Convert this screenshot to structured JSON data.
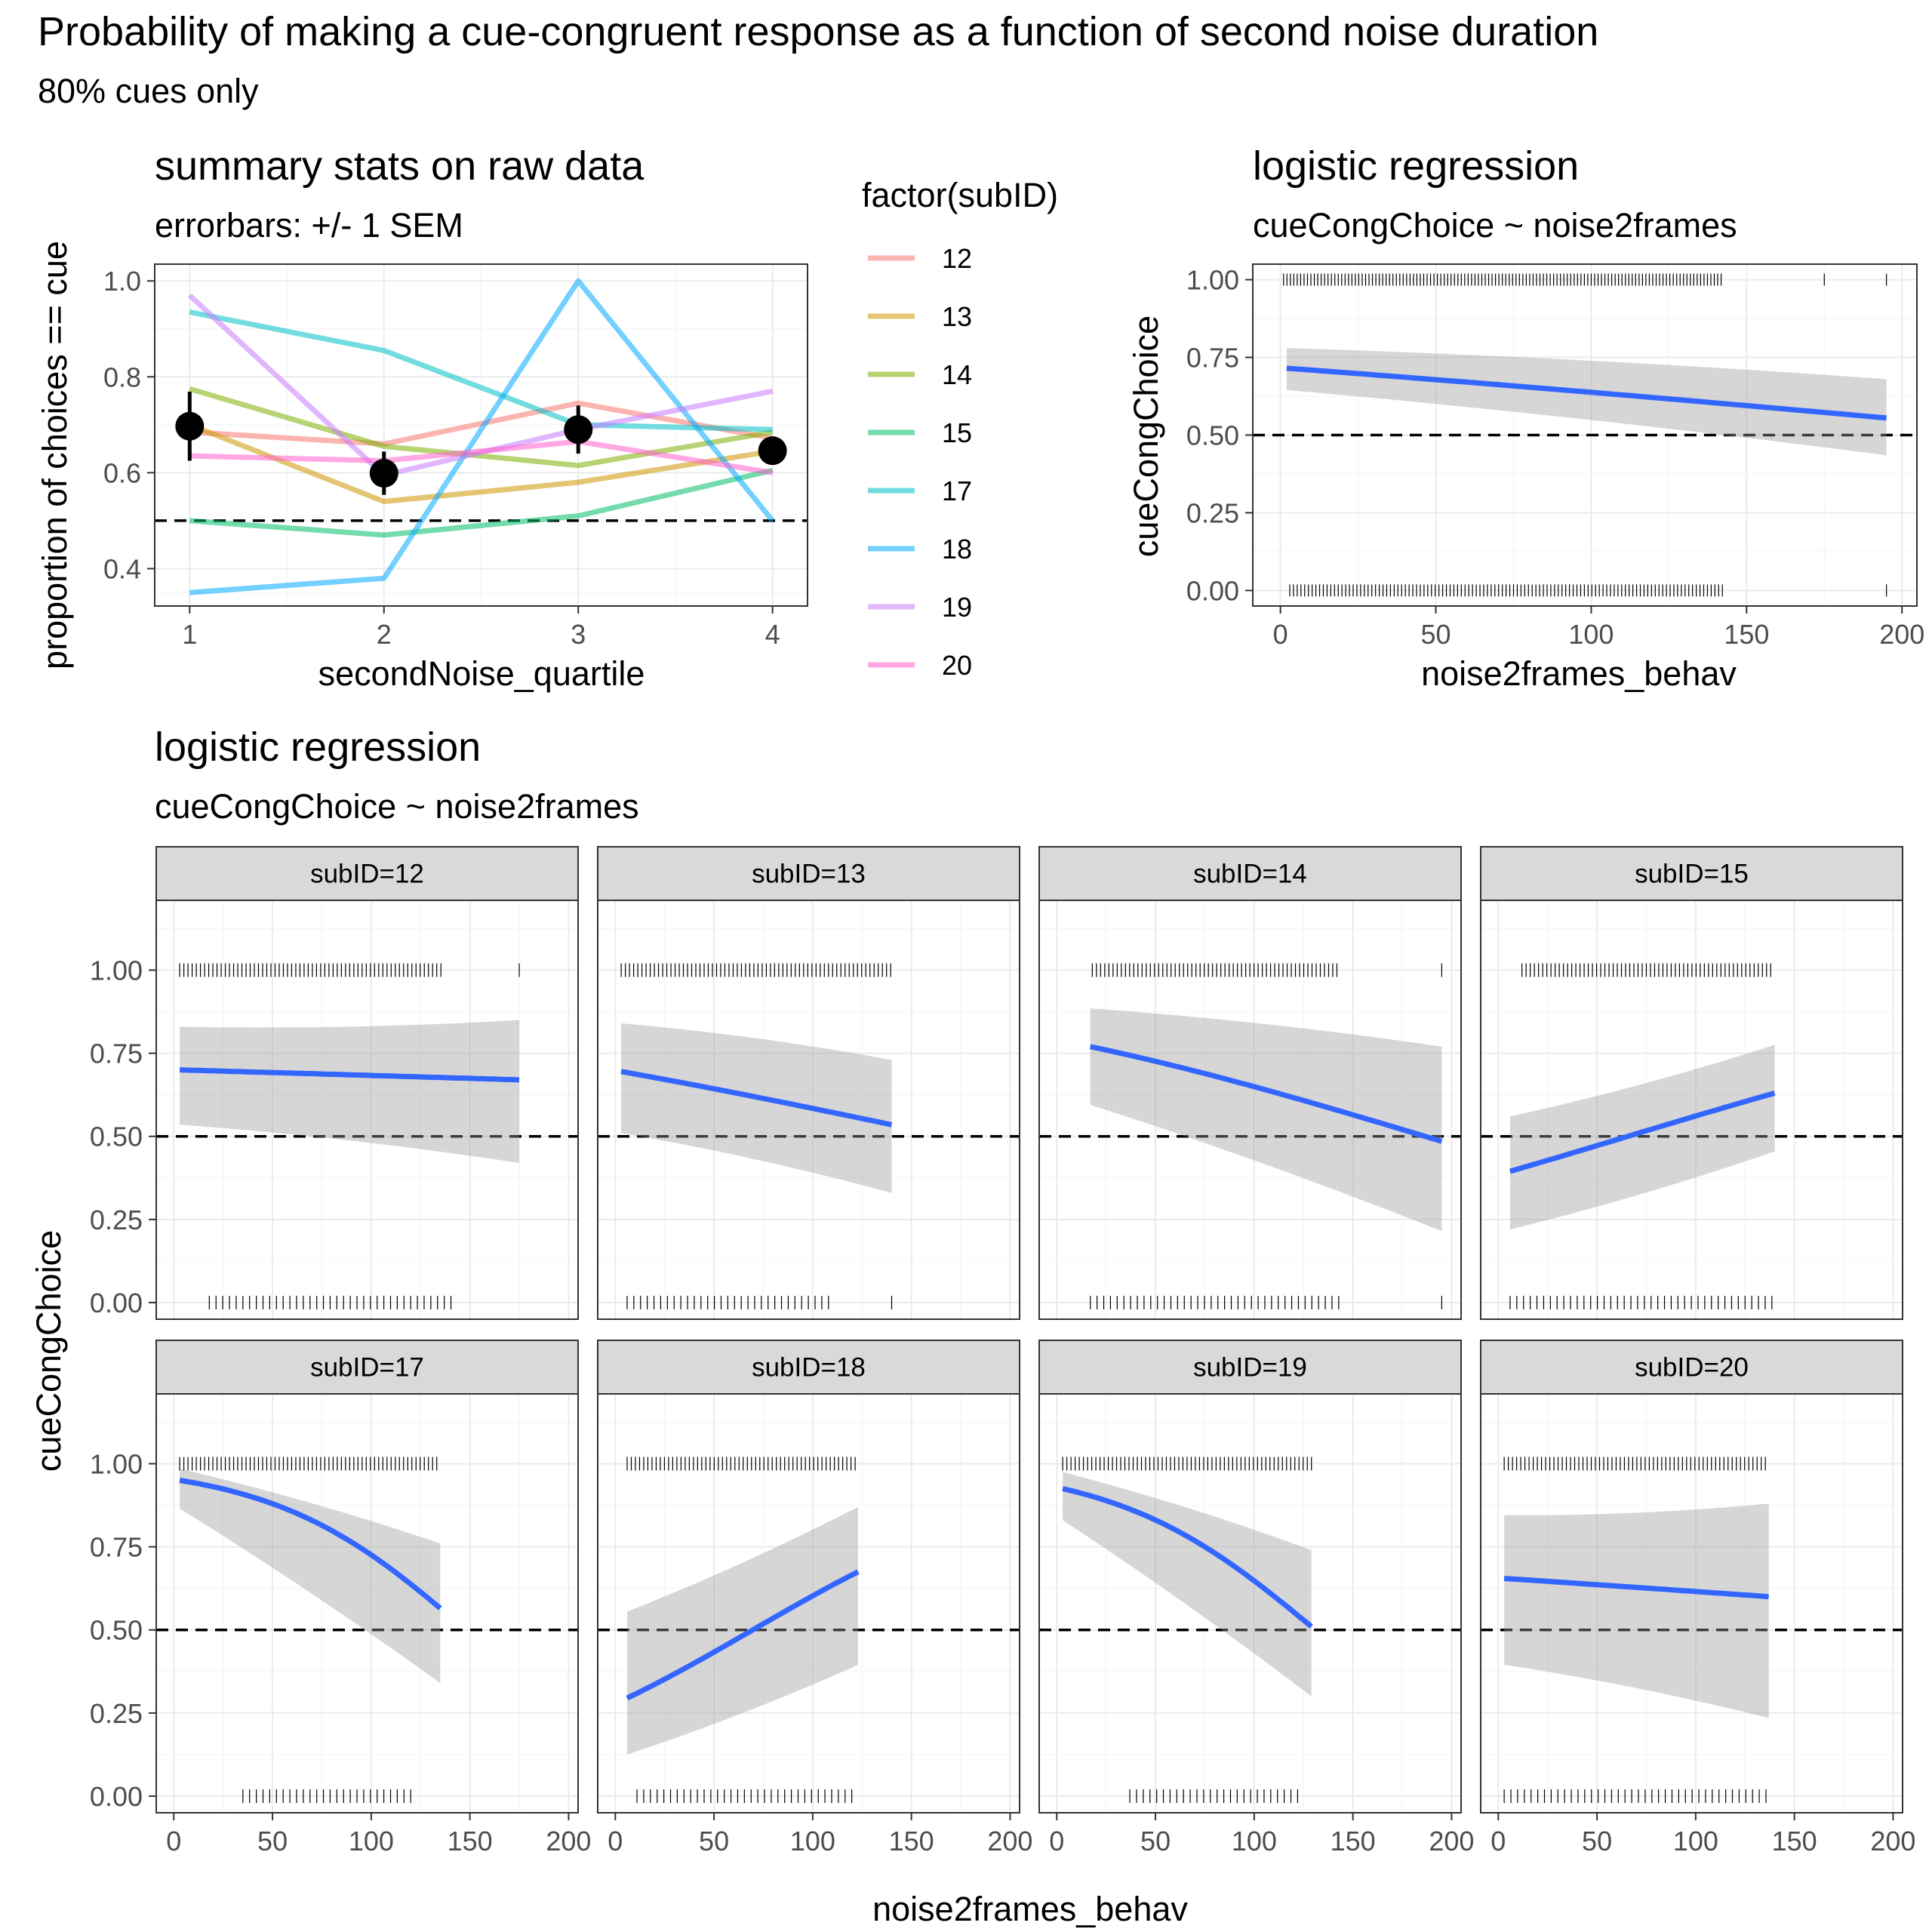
{
  "figure": {
    "title": "Probability of making a cue-congruent response as a function of second noise duration",
    "subtitle": "80% cues only"
  },
  "chart_data": [
    {
      "id": "summary",
      "type": "line",
      "title": "summary stats on raw data",
      "subtitle": "errorbars: +/- 1 SEM",
      "xlabel": "secondNoise_quartile",
      "ylabel": "proportion of choices == cue",
      "xlim": [
        0.82,
        4.18
      ],
      "ylim": [
        0.322,
        1.035
      ],
      "x_ticks": [
        1,
        2,
        3,
        4
      ],
      "y_ticks": [
        0.4,
        0.6,
        0.8,
        1.0
      ],
      "y_tick_labels": [
        "0.4",
        "0.6",
        "0.8",
        "1.0"
      ],
      "reference_line": 0.5,
      "grid": true,
      "legend": {
        "title": "factor(subID)",
        "placement": "right"
      },
      "series": [
        {
          "name": "12",
          "color": "#F8766D",
          "x": [
            1,
            2,
            3,
            4
          ],
          "values": [
            0.685,
            0.66,
            0.745,
            0.672
          ]
        },
        {
          "name": "13",
          "color": "#CD9600",
          "x": [
            1,
            2,
            3,
            4
          ],
          "values": [
            0.7,
            0.54,
            0.58,
            0.645
          ]
        },
        {
          "name": "14",
          "color": "#7CAE00",
          "x": [
            1,
            2,
            3,
            4
          ],
          "values": [
            0.775,
            0.655,
            0.615,
            0.685
          ]
        },
        {
          "name": "15",
          "color": "#00BE67",
          "x": [
            1,
            2,
            3,
            4
          ],
          "values": [
            0.5,
            0.47,
            0.51,
            0.605
          ]
        },
        {
          "name": "17",
          "color": "#00BFC4",
          "x": [
            1,
            2,
            3,
            4
          ],
          "values": [
            0.935,
            0.855,
            0.7,
            0.69
          ]
        },
        {
          "name": "18",
          "color": "#00A9FF",
          "x": [
            1,
            2,
            3,
            4
          ],
          "values": [
            0.35,
            0.38,
            1.0,
            0.5
          ]
        },
        {
          "name": "19",
          "color": "#C77CFF",
          "x": [
            1,
            2,
            3,
            4
          ],
          "values": [
            0.97,
            0.595,
            0.69,
            0.77
          ]
        },
        {
          "name": "20",
          "color": "#FF61CC",
          "x": [
            1,
            2,
            3,
            4
          ],
          "values": [
            0.635,
            0.625,
            0.665,
            0.6
          ]
        }
      ],
      "group_mean": {
        "x": [
          1,
          2,
          3,
          4
        ],
        "values": [
          0.697,
          0.599,
          0.69,
          0.646
        ],
        "sem": [
          0.072,
          0.045,
          0.05,
          0.018
        ]
      }
    },
    {
      "id": "overall",
      "type": "scatter",
      "title": "logistic regression",
      "subtitle": "cueCongChoice ~ noise2frames",
      "xlabel": "noise2frames_behav",
      "ylabel": "cueCongChoice",
      "xlim": [
        -8.9,
        204.8
      ],
      "ylim": [
        -0.05,
        1.05
      ],
      "x_ticks": [
        0,
        50,
        100,
        150,
        200
      ],
      "y_ticks": [
        0,
        0.25,
        0.5,
        0.75,
        1.0
      ],
      "y_tick_labels": [
        "0.00",
        "0.25",
        "0.50",
        "0.75",
        "1.00"
      ],
      "reference_line": 0.5,
      "fit": {
        "x": [
          2,
          195
        ],
        "values": [
          0.715,
          0.555
        ]
      },
      "ci": {
        "upper": [
          0.78,
          0.68
        ],
        "lower": [
          0.645,
          0.435
        ]
      },
      "rug_ones_range": [
        1,
        142
      ],
      "rug_ones_extra": [
        175,
        195
      ],
      "rug_zeros_range": [
        3,
        143
      ],
      "rug_zeros_extra": [
        195
      ]
    },
    {
      "id": "by-subject",
      "type": "scatter",
      "title": "logistic regression",
      "subtitle": "cueCongChoice ~ noise2frames",
      "xlabel": "noise2frames_behav",
      "ylabel": "cueCongChoice",
      "xlim": [
        -8.9,
        204.8
      ],
      "ylim": [
        -0.05,
        1.21
      ],
      "x_ticks": [
        0,
        50,
        100,
        150,
        200
      ],
      "y_ticks": [
        0,
        0.25,
        0.5,
        0.75,
        1.0
      ],
      "y_tick_labels": [
        "0.00",
        "0.25",
        "0.50",
        "0.75",
        "1.00"
      ],
      "reference_line": 0.5,
      "facets": [
        {
          "label": "subID=12",
          "fit": {
            "x": [
              3,
              175
            ],
            "values": [
              0.7,
              0.67
            ]
          },
          "ci": {
            "upper": [
              0.83,
              0.85
            ],
            "lower": [
              0.535,
              0.42
            ]
          },
          "ones_range": [
            3,
            136
          ],
          "ones_extra": [
            175
          ],
          "zeros_range": [
            18,
            142
          ],
          "zeros_extra": []
        },
        {
          "label": "subID=13",
          "fit": {
            "x": [
              3,
              140
            ],
            "values": [
              0.695,
              0.535
            ]
          },
          "ci": {
            "upper": [
              0.84,
              0.73
            ],
            "lower": [
              0.51,
              0.33
            ]
          },
          "ones_range": [
            3,
            140
          ],
          "ones_extra": [],
          "zeros_range": [
            6,
            110
          ],
          "zeros_extra": [
            140
          ]
        },
        {
          "label": "subID=14",
          "fit": {
            "x": [
              17,
              195
            ],
            "values": [
              0.77,
              0.485
            ]
          },
          "ci": {
            "upper": [
              0.885,
              0.77
            ],
            "lower": [
              0.595,
              0.215
            ]
          },
          "ones_range": [
            18,
            143
          ],
          "ones_extra": [
            195
          ],
          "zeros_range": [
            17,
            143
          ],
          "zeros_extra": [
            195
          ]
        },
        {
          "label": "subID=15",
          "fit": {
            "x": [
              6,
              140
            ],
            "values": [
              0.395,
              0.63
            ]
          },
          "ci": {
            "upper": [
              0.56,
              0.775
            ],
            "lower": [
              0.22,
              0.455
            ]
          },
          "ones_range": [
            12,
            140
          ],
          "ones_extra": [],
          "zeros_range": [
            6,
            140
          ],
          "zeros_extra": []
        },
        {
          "label": "subID=17",
          "fit": {
            "x": [
              3,
              135
            ],
            "values": [
              0.95,
              0.565
            ]
          },
          "ci": {
            "upper": [
              0.985,
              0.76
            ],
            "lower": [
              0.865,
              0.34
            ]
          },
          "ones_range": [
            3,
            135
          ],
          "ones_extra": [],
          "zeros_range": [
            35,
            122
          ],
          "zeros_extra": []
        },
        {
          "label": "subID=18",
          "fit": {
            "x": [
              6,
              123
            ],
            "values": [
              0.295,
              0.675
            ]
          },
          "ci": {
            "upper": [
              0.555,
              0.87
            ],
            "lower": [
              0.125,
              0.395
            ]
          },
          "ones_range": [
            6,
            122
          ],
          "ones_extra": [],
          "zeros_range": [
            11,
            123
          ],
          "zeros_extra": []
        },
        {
          "label": "subID=19",
          "fit": {
            "x": [
              3,
              129
            ],
            "values": [
              0.925,
              0.51
            ]
          },
          "ci": {
            "upper": [
              0.975,
              0.74
            ],
            "lower": [
              0.83,
              0.3
            ]
          },
          "ones_range": [
            3,
            129
          ],
          "ones_extra": [],
          "zeros_range": [
            37,
            123
          ],
          "zeros_extra": []
        },
        {
          "label": "subID=20",
          "fit": {
            "x": [
              3,
              137
            ],
            "values": [
              0.655,
              0.6
            ]
          },
          "ci": {
            "upper": [
              0.845,
              0.88
            ],
            "lower": [
              0.395,
              0.235
            ]
          },
          "ones_range": [
            3,
            137
          ],
          "ones_extra": [],
          "zeros_range": [
            3,
            137
          ],
          "zeros_extra": []
        }
      ]
    }
  ]
}
